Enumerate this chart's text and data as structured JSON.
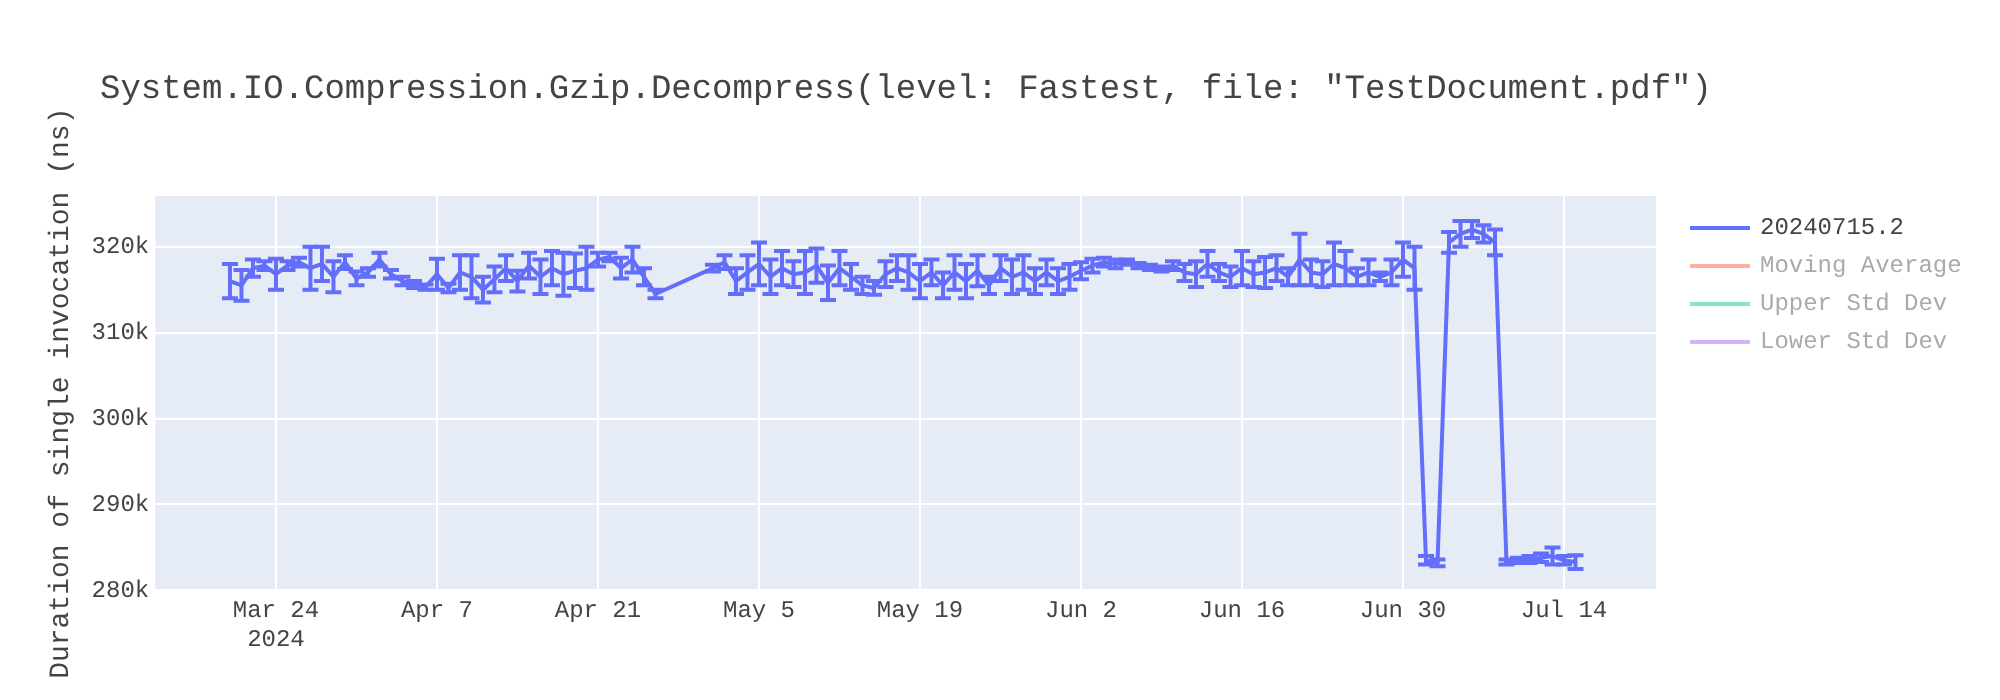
{
  "chart_data": {
    "type": "line",
    "title": "System.IO.Compression.Gzip.Decompress(level: Fastest, file: \"TestDocument.pdf\")",
    "ylabel": "Duration of single invocation (ns)",
    "x": [
      "2024-03-20",
      "2024-03-21",
      "2024-03-22",
      "2024-03-23",
      "2024-03-24",
      "2024-03-25",
      "2024-03-26",
      "2024-03-27",
      "2024-03-28",
      "2024-03-29",
      "2024-03-30",
      "2024-03-31",
      "2024-04-01",
      "2024-04-02",
      "2024-04-03",
      "2024-04-04",
      "2024-04-05",
      "2024-04-06",
      "2024-04-07",
      "2024-04-08",
      "2024-04-09",
      "2024-04-10",
      "2024-04-11",
      "2024-04-12",
      "2024-04-13",
      "2024-04-14",
      "2024-04-15",
      "2024-04-16",
      "2024-04-17",
      "2024-04-18",
      "2024-04-19",
      "2024-04-20",
      "2024-04-21",
      "2024-04-22",
      "2024-04-23",
      "2024-04-24",
      "2024-04-25",
      "2024-04-26",
      "2024-05-01",
      "2024-05-02",
      "2024-05-03",
      "2024-05-04",
      "2024-05-05",
      "2024-05-06",
      "2024-05-07",
      "2024-05-08",
      "2024-05-09",
      "2024-05-10",
      "2024-05-11",
      "2024-05-12",
      "2024-05-13",
      "2024-05-14",
      "2024-05-15",
      "2024-05-16",
      "2024-05-17",
      "2024-05-18",
      "2024-05-19",
      "2024-05-20",
      "2024-05-21",
      "2024-05-22",
      "2024-05-23",
      "2024-05-24",
      "2024-05-25",
      "2024-05-26",
      "2024-05-27",
      "2024-05-28",
      "2024-05-29",
      "2024-05-30",
      "2024-05-31",
      "2024-06-01",
      "2024-06-02",
      "2024-06-03",
      "2024-06-04",
      "2024-06-05",
      "2024-06-06",
      "2024-06-07",
      "2024-06-08",
      "2024-06-09",
      "2024-06-10",
      "2024-06-11",
      "2024-06-12",
      "2024-06-13",
      "2024-06-14",
      "2024-06-15",
      "2024-06-16",
      "2024-06-17",
      "2024-06-18",
      "2024-06-19",
      "2024-06-20",
      "2024-06-21",
      "2024-06-22",
      "2024-06-23",
      "2024-06-24",
      "2024-06-25",
      "2024-06-26",
      "2024-06-27",
      "2024-06-28",
      "2024-06-29",
      "2024-06-30",
      "2024-07-01",
      "2024-07-02",
      "2024-07-03",
      "2024-07-04",
      "2024-07-05",
      "2024-07-06",
      "2024-07-07",
      "2024-07-08",
      "2024-07-09",
      "2024-07-10",
      "2024-07-11",
      "2024-07-12",
      "2024-07-13",
      "2024-07-14",
      "2024-07-15"
    ],
    "series": [
      {
        "name": "20240715.2",
        "color": "#636efa",
        "values": [
          316000,
          315500,
          317500,
          317800,
          316800,
          317800,
          318200,
          317500,
          318000,
          316500,
          318200,
          316300,
          317000,
          318500,
          316800,
          316000,
          315600,
          315300,
          316800,
          315200,
          317000,
          316500,
          315000,
          316200,
          317500,
          316000,
          317800,
          316500,
          317500,
          316800,
          317200,
          317500,
          318500,
          318800,
          317500,
          318500,
          316500,
          314500,
          317500,
          318200,
          316000,
          317000,
          318000,
          316500,
          317500,
          316800,
          317000,
          317800,
          315800,
          317500,
          316500,
          315500,
          315200,
          316800,
          317500,
          317000,
          316000,
          317000,
          315500,
          317000,
          316000,
          317200,
          315500,
          317500,
          316500,
          317000,
          316000,
          317000,
          316000,
          316500,
          317200,
          317800,
          318200,
          318000,
          318200,
          317800,
          317600,
          317400,
          317800,
          317000,
          316800,
          318000,
          317000,
          316500,
          317500,
          316800,
          317000,
          317500,
          316500,
          318500,
          317000,
          316800,
          318000,
          317500,
          316500,
          317000,
          316500,
          317000,
          318500,
          317500,
          283500,
          283200,
          320500,
          321500,
          322000,
          321500,
          320500,
          283300,
          283500,
          283600,
          283800,
          284000,
          283500,
          283300
        ],
        "errors": [
          2000,
          1800,
          1000,
          500,
          1800,
          500,
          500,
          2500,
          2000,
          1800,
          800,
          800,
          500,
          800,
          500,
          500,
          400,
          300,
          1800,
          500,
          2000,
          2500,
          1500,
          1500,
          1500,
          1200,
          1500,
          2000,
          2000,
          2500,
          2000,
          2500,
          800,
          500,
          1200,
          1500,
          1000,
          500,
          400,
          800,
          1500,
          2000,
          2500,
          2000,
          2000,
          1500,
          2500,
          2000,
          2000,
          2000,
          1500,
          1000,
          800,
          1500,
          1500,
          2000,
          2000,
          1500,
          1500,
          2000,
          2000,
          1800,
          1000,
          1500,
          2000,
          2000,
          1500,
          1500,
          1500,
          1500,
          1000,
          800,
          500,
          500,
          300,
          300,
          300,
          300,
          500,
          1000,
          1500,
          1500,
          1000,
          1200,
          2000,
          1500,
          1800,
          1500,
          1000,
          3000,
          1500,
          1500,
          2500,
          2000,
          1000,
          1500,
          500,
          1500,
          2000,
          2500,
          500,
          400,
          1200,
          1500,
          1000,
          1000,
          1500,
          300,
          300,
          400,
          500,
          1000,
          500,
          800
        ]
      },
      {
        "name": "Moving Average",
        "color": "#f8b0a1",
        "values": [
          null,
          null,
          null,
          null,
          null,
          null,
          null,
          null,
          null,
          null,
          null,
          null,
          null,
          null,
          null,
          null,
          null,
          null,
          null,
          null,
          null,
          null,
          null,
          null,
          null,
          null,
          null,
          null,
          null,
          null,
          null,
          null,
          null,
          null,
          null,
          null,
          null,
          null,
          null,
          null,
          null,
          null,
          null,
          null,
          null,
          null,
          null,
          null,
          null,
          null,
          null,
          null,
          null,
          null,
          null,
          null,
          null,
          null,
          null,
          null,
          null,
          null,
          null,
          null,
          null,
          null,
          null,
          null,
          null,
          null,
          null,
          null,
          null,
          null,
          null,
          null,
          null,
          null,
          null,
          null,
          null,
          null,
          null,
          null,
          null,
          null,
          null,
          null,
          null,
          null,
          null,
          null,
          null,
          null,
          null,
          null,
          null,
          null,
          null,
          null,
          null,
          null,
          null,
          null,
          null,
          null,
          null,
          null,
          null,
          null,
          null,
          null,
          null,
          null
        ]
      },
      {
        "name": "Upper Std Dev",
        "color": "#80e6cb",
        "values": [
          null,
          null,
          null,
          null,
          null,
          null,
          null,
          null,
          null,
          null,
          null,
          null,
          null,
          null,
          null,
          null,
          null,
          null,
          null,
          null,
          null,
          null,
          null,
          null,
          null,
          null,
          null,
          null,
          null,
          null,
          null,
          null,
          null,
          null,
          null,
          null,
          null,
          null,
          null,
          null,
          null,
          null,
          null,
          null,
          null,
          null,
          null,
          null,
          null,
          null,
          null,
          null,
          null,
          null,
          null,
          null,
          null,
          null,
          null,
          null,
          null,
          null,
          null,
          null,
          null,
          null,
          null,
          null,
          null,
          null,
          null,
          null,
          null,
          null,
          null,
          null,
          null,
          null,
          null,
          null,
          null,
          null,
          null,
          null,
          null,
          null,
          null,
          null,
          null,
          null,
          null,
          null,
          null,
          null,
          null,
          null,
          null,
          null,
          null,
          null,
          null,
          null,
          null,
          null,
          null,
          null,
          null,
          null,
          null,
          null,
          null,
          null,
          null,
          null
        ]
      },
      {
        "name": "Lower Std Dev",
        "color": "#d5b1fd",
        "values": [
          null,
          null,
          null,
          null,
          null,
          null,
          null,
          null,
          null,
          null,
          null,
          null,
          null,
          null,
          null,
          null,
          null,
          null,
          null,
          null,
          null,
          null,
          null,
          null,
          null,
          null,
          null,
          null,
          null,
          null,
          null,
          null,
          null,
          null,
          null,
          null,
          null,
          null,
          null,
          null,
          null,
          null,
          null,
          null,
          null,
          null,
          null,
          null,
          null,
          null,
          null,
          null,
          null,
          null,
          null,
          null,
          null,
          null,
          null,
          null,
          null,
          null,
          null,
          null,
          null,
          null,
          null,
          null,
          null,
          null,
          null,
          null,
          null,
          null,
          null,
          null,
          null,
          null,
          null,
          null,
          null,
          null,
          null,
          null,
          null,
          null,
          null,
          null,
          null,
          null,
          null,
          null,
          null,
          null,
          null,
          null,
          null,
          null,
          null,
          null,
          null,
          null,
          null,
          null,
          null,
          null,
          null,
          null,
          null,
          null,
          null,
          null,
          null,
          null
        ]
      }
    ],
    "xlim": [
      "2024-03-13T12:00",
      "2024-07-22"
    ],
    "xticks": [
      {
        "value": "2024-03-24",
        "label": "Mar 24\n2024"
      },
      {
        "value": "2024-04-07",
        "label": "Apr 7"
      },
      {
        "value": "2024-04-21",
        "label": "Apr 21"
      },
      {
        "value": "2024-05-05",
        "label": "May 5"
      },
      {
        "value": "2024-05-19",
        "label": "May 19"
      },
      {
        "value": "2024-06-02",
        "label": "Jun 2"
      },
      {
        "value": "2024-06-16",
        "label": "Jun 16"
      },
      {
        "value": "2024-06-30",
        "label": "Jun 30"
      },
      {
        "value": "2024-07-14",
        "label": "Jul 14"
      }
    ],
    "ylim": [
      280000,
      325900
    ],
    "yticks": [
      {
        "value": 280000,
        "label": "280k"
      },
      {
        "value": 290000,
        "label": "290k"
      },
      {
        "value": 300000,
        "label": "300k"
      },
      {
        "value": 310000,
        "label": "310k"
      },
      {
        "value": 320000,
        "label": "320k"
      }
    ],
    "grid": true,
    "legend": "right",
    "marker": "none",
    "line_style": "solid"
  }
}
